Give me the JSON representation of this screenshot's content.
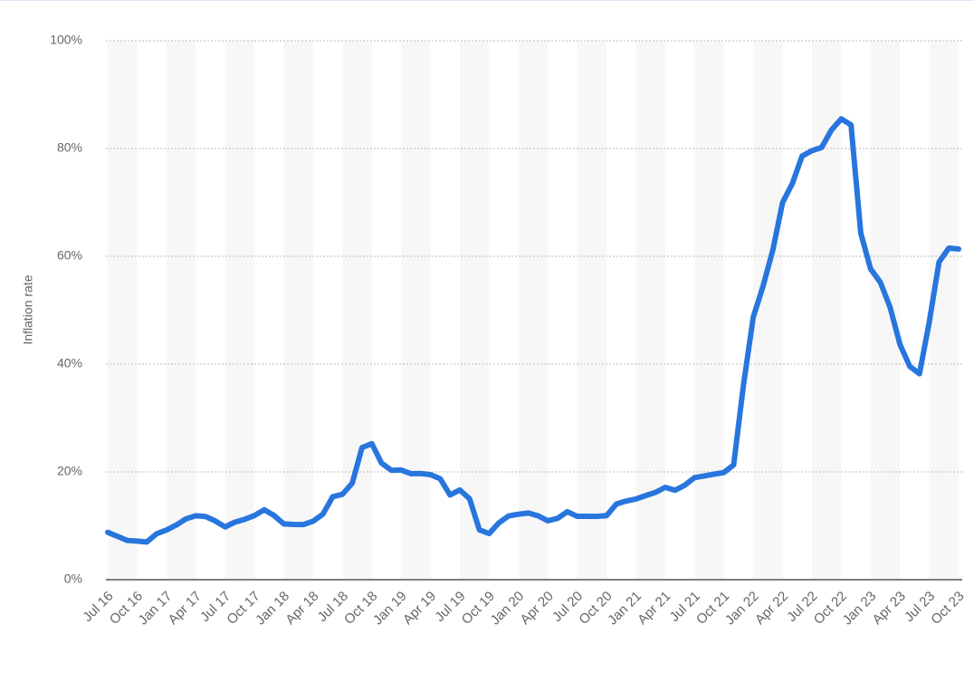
{
  "chart_data": {
    "type": "line",
    "y_label": "Inflation rate",
    "categories": [
      "Jul 16",
      null,
      null,
      "Oct 16",
      null,
      null,
      "Jan 17",
      null,
      null,
      "Apr 17",
      null,
      null,
      "Jul 17",
      null,
      null,
      "Oct 17",
      null,
      null,
      "Jan 18",
      null,
      null,
      "Apr 18",
      null,
      null,
      "Jul 18",
      null,
      null,
      "Oct 18",
      null,
      null,
      "Jan 19",
      null,
      null,
      "Apr 19",
      null,
      null,
      "Jul 19",
      null,
      null,
      "Oct 19",
      null,
      null,
      "Jan 20",
      null,
      null,
      "Apr 20",
      null,
      null,
      "Jul 20",
      null,
      null,
      "Oct 20",
      null,
      null,
      "Jan 21",
      null,
      null,
      "Apr 21",
      null,
      null,
      "Jul 21",
      null,
      null,
      "Oct 21",
      null,
      null,
      "Jan 22",
      null,
      null,
      "Apr 22",
      null,
      null,
      "Jul 22",
      null,
      null,
      "Oct 22",
      null,
      null,
      "Jan 23",
      null,
      null,
      "Apr 23",
      null,
      null,
      "Jul 23",
      null,
      null,
      "Oct 23"
    ],
    "series": [
      {
        "name": "Inflation rate",
        "color": "#2876dd",
        "values": [
          8.79,
          8.05,
          7.28,
          7.16,
          7.0,
          8.53,
          9.22,
          10.13,
          11.29,
          11.87,
          11.72,
          10.9,
          9.79,
          10.68,
          11.2,
          11.9,
          12.98,
          11.92,
          10.35,
          10.26,
          10.23,
          10.85,
          12.15,
          15.39,
          15.85,
          17.9,
          24.52,
          25.24,
          21.62,
          20.3,
          20.35,
          19.67,
          19.71,
          19.5,
          18.71,
          15.72,
          16.65,
          15.01,
          9.26,
          8.55,
          10.56,
          11.84,
          12.15,
          12.37,
          11.86,
          10.94,
          11.39,
          12.62,
          11.76,
          11.77,
          11.75,
          11.89,
          14.03,
          14.6,
          14.97,
          15.61,
          16.19,
          17.14,
          16.59,
          17.53,
          18.95,
          19.25,
          19.58,
          19.89,
          21.31,
          36.08,
          48.69,
          54.44,
          61.14,
          69.97,
          73.5,
          78.62,
          79.6,
          80.21,
          83.45,
          85.51,
          84.39,
          64.27,
          57.68,
          55.18,
          50.51,
          43.68,
          39.59,
          38.21,
          47.83,
          58.94,
          61.53,
          61.36
        ]
      }
    ],
    "ylim": [
      0,
      100
    ],
    "yticks": [
      {
        "value": 0,
        "label": "0%"
      },
      {
        "value": 20,
        "label": "20%"
      },
      {
        "value": 40,
        "label": "40%"
      },
      {
        "value": 60,
        "label": "60%"
      },
      {
        "value": 80,
        "label": "80%"
      },
      {
        "value": 100,
        "label": "100%"
      }
    ],
    "grid": true
  }
}
